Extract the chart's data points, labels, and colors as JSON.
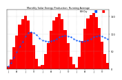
{
  "title": "Monthly Solar Energy Production  Running Average",
  "bar_color": "#ff0000",
  "line_color": "#0055ff",
  "bg_color": "#ffffff",
  "grid_color": "#aaaaaa",
  "values": [
    8,
    28,
    62,
    95,
    128,
    142,
    152,
    138,
    105,
    68,
    30,
    8,
    12,
    42,
    75,
    110,
    138,
    148,
    158,
    142,
    112,
    75,
    36,
    14,
    4,
    35,
    80,
    115,
    145,
    155,
    160,
    148,
    118,
    78,
    42,
    18
  ],
  "avg_values": [
    8,
    18,
    33,
    48,
    64,
    79,
    93,
    104,
    106,
    103,
    97,
    89,
    82,
    80,
    79,
    80,
    83,
    87,
    91,
    94,
    95,
    94,
    91,
    87,
    82,
    80,
    79,
    80,
    83,
    87,
    91,
    94,
    95,
    93,
    90,
    86
  ],
  "n_bars": 36,
  "ylim": [
    0,
    170
  ],
  "yticks": [
    0,
    50,
    100,
    150
  ],
  "yticklabels": [
    "0",
    "50",
    "100",
    "150"
  ]
}
